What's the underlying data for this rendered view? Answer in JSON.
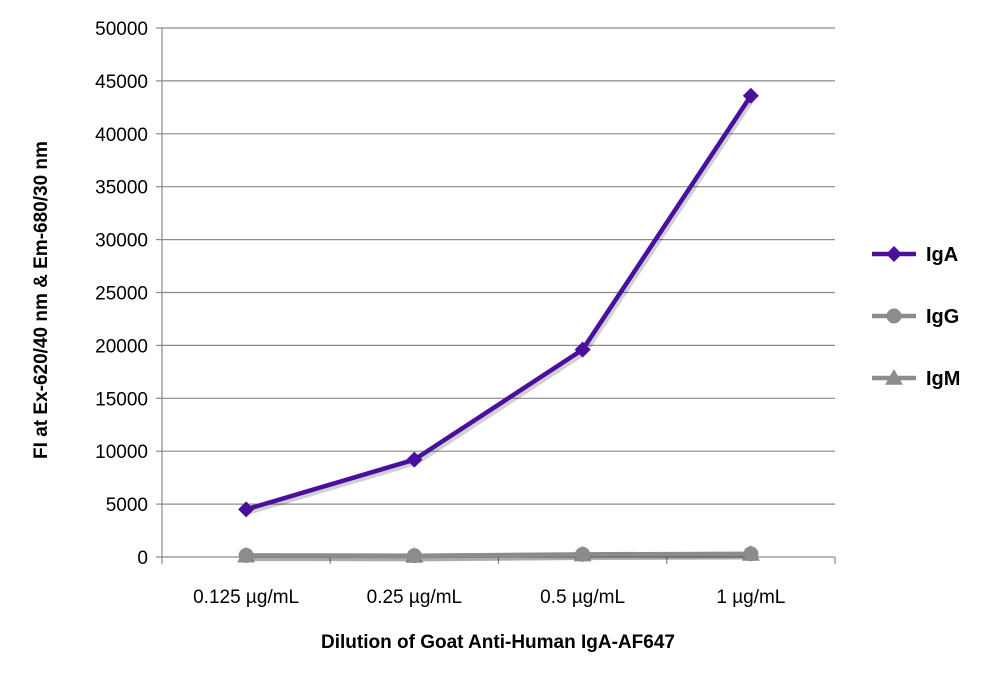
{
  "chart_data": {
    "type": "line",
    "categories": [
      "0.125 µg/mL",
      "0.25 µg/mL",
      "0.5 µg/mL",
      "1 µg/mL"
    ],
    "series": [
      {
        "name": "IgA",
        "values": [
          4500,
          9200,
          19600,
          43600
        ],
        "color": "#4b0fa0",
        "marker": "diamond"
      },
      {
        "name": "IgG",
        "values": [
          150,
          120,
          250,
          300
        ],
        "color": "#8c8c8c",
        "marker": "circle"
      },
      {
        "name": "IgM",
        "values": [
          120,
          100,
          220,
          280
        ],
        "color": "#8c8c8c",
        "marker": "triangle"
      }
    ],
    "xlabel": "Dilution of Goat Anti-Human IgA-AF647",
    "ylabel": "FI at Ex-620/40 nm & Em-680/30 nm",
    "ylim": [
      0,
      50000
    ],
    "yticks": [
      0,
      5000,
      10000,
      15000,
      20000,
      25000,
      30000,
      35000,
      40000,
      45000,
      50000
    ],
    "grid": true,
    "legend_position": "right"
  }
}
